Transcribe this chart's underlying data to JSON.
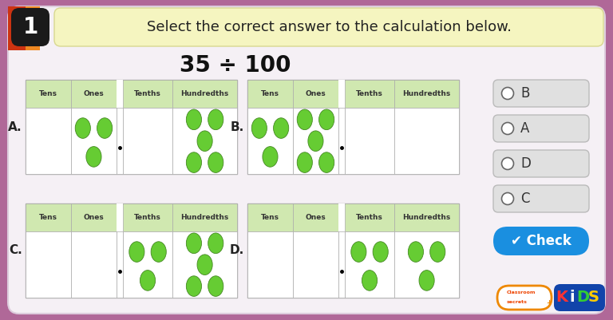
{
  "bg_color": "#b06898",
  "main_bg": "#f5f0f5",
  "title_bar_color": "#f5f5c0",
  "title_bar_edge": "#d8d890",
  "question_number": "1",
  "question_text": "Select the correct answer to the calculation below.",
  "calculation": "35 ÷ 100",
  "header_bg": "#d0e8b0",
  "radio_labels": [
    "B",
    "A",
    "D",
    "C"
  ],
  "check_btn_color": "#1a8fe0",
  "dot_color": "#66cc33",
  "dot_edge": "#448822",
  "table_border": "#aaaaaa",
  "table_bg": "white",
  "accent_red": "#cc3311",
  "accent_orange": "#ee8822",
  "badge_bg": "#1a1a1a",
  "text_dark": "#222222",
  "radio_bg": "#e0e0e0",
  "radio_edge": "#bbbbbb"
}
